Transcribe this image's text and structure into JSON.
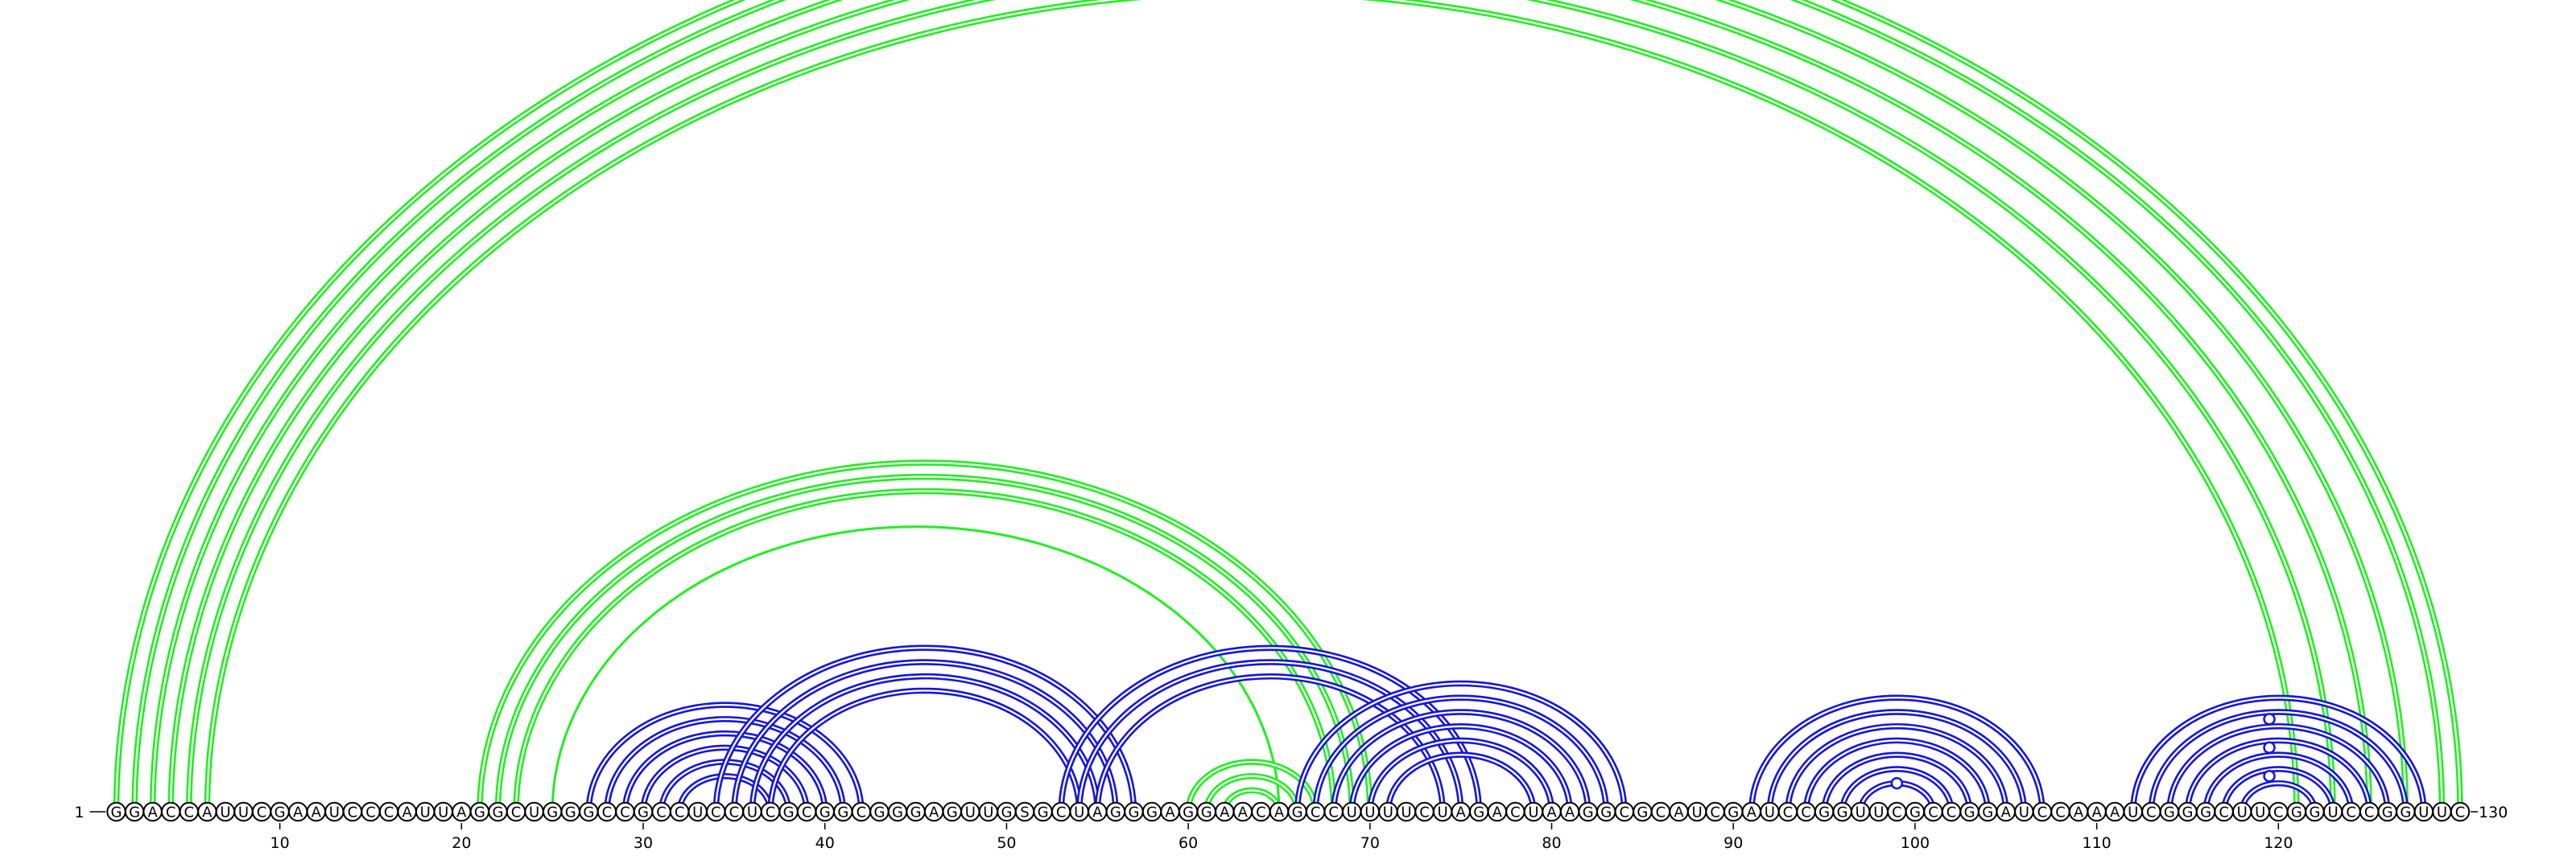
{
  "sequence": "GGACCAUUCGAAUCCCAUUAGGCUGGGCCGCCUCCUCGCGGCGGGAGUUGSGCUAGGGAGGAACAGCCUUUUCUAGACUAAGGCGCAUCGAUCCGGUUCGCCGGAUCCAAAUCGGGCUUCGGUCCGGUUC",
  "start_label": "1",
  "end_label": "130",
  "ticks": [
    "10",
    "20",
    "30",
    "40",
    "50",
    "60",
    "70",
    "80",
    "90",
    "100",
    "110",
    "120"
  ],
  "colors": {
    "green": "#22ee22",
    "blue": "#1515dd",
    "outline": "#000000"
  },
  "helices": [
    {
      "color": "green",
      "i": 1,
      "j": 130,
      "n": 1,
      "lines": 2
    },
    {
      "color": "green",
      "i": 2,
      "j": 129,
      "n": 1,
      "lines": 2
    },
    {
      "color": "green",
      "i": 3,
      "j": 127,
      "n": 1,
      "lines": 2
    },
    {
      "color": "green",
      "i": 4,
      "j": 125,
      "n": 1,
      "lines": 2
    },
    {
      "color": "green",
      "i": 5,
      "j": 123,
      "n": 1,
      "lines": 2
    },
    {
      "color": "green",
      "i": 6,
      "j": 121,
      "n": 1,
      "lines": 2
    },
    {
      "color": "green",
      "i": 21,
      "j": 70,
      "n": 1,
      "lines": 2
    },
    {
      "color": "green",
      "i": 22,
      "j": 69,
      "n": 1,
      "lines": 2
    },
    {
      "color": "green",
      "i": 23,
      "j": 68,
      "n": 1,
      "lines": 2
    },
    {
      "color": "green",
      "i": 25,
      "j": 65,
      "n": 1,
      "lines": 1
    },
    {
      "color": "green",
      "i": 60,
      "j": 67,
      "n": 3,
      "lines": 2
    },
    {
      "color": "blue",
      "i": 27,
      "j": 42,
      "n": 6,
      "lines": 2
    },
    {
      "color": "blue",
      "i": 34,
      "j": 57,
      "n": 4,
      "lines": 2
    },
    {
      "color": "blue",
      "i": 53,
      "j": 76,
      "n": 3,
      "lines": 2
    },
    {
      "color": "blue",
      "i": 66,
      "j": 84,
      "n": 6,
      "lines": 2
    },
    {
      "color": "blue",
      "i": 91,
      "j": 107,
      "n": 7,
      "lines": 2
    },
    {
      "color": "blue",
      "i": 112,
      "j": 128,
      "n": 7,
      "lines": 2
    }
  ],
  "markers": [
    {
      "color": "green",
      "i": 3,
      "j": 127
    },
    {
      "color": "blue",
      "i": 97,
      "j": 101
    },
    {
      "color": "blue",
      "i": 117,
      "j": 122
    },
    {
      "color": "blue",
      "i": 115,
      "j": 124
    },
    {
      "color": "blue",
      "i": 113,
      "j": 126
    }
  ]
}
